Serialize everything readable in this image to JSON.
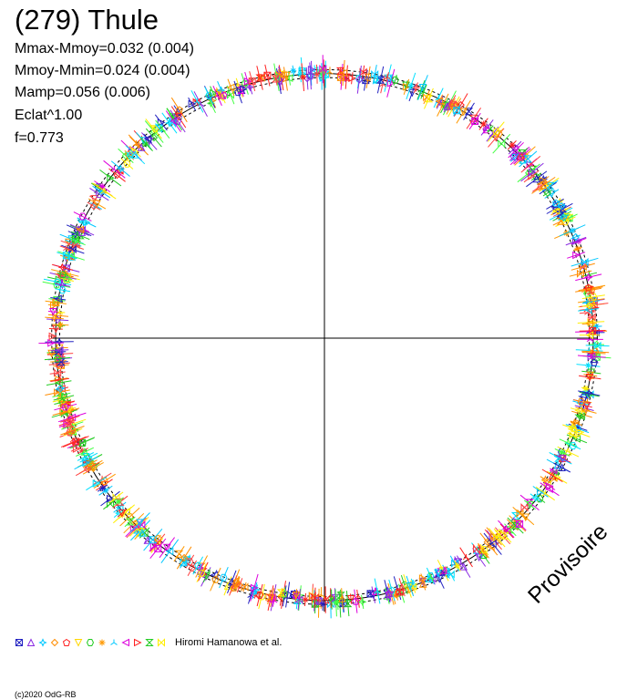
{
  "title": "(279) Thule",
  "stats": {
    "mmax_mmoy": "Mmax-Mmoy=0.032 (0.004)",
    "mmoy_mmin": "Mmoy-Mmin=0.024 (0.004)",
    "mamp": "Mamp=0.056 (0.006)",
    "eclat": "Eclat^1.00",
    "f": "f=0.773"
  },
  "credit": "Hiromi Hamanowa et al.",
  "copyright": "(c)2020 OdG-RB",
  "watermark": "Provisoire",
  "chart_data": {
    "type": "scatter",
    "subtype": "polar lightcurve",
    "title": "(279) Thule",
    "amplitude_mag": 0.056,
    "period_fraction_f": 0.773,
    "axes": "crosshair through center",
    "colors": [
      "#2020c0",
      "#8a2be2",
      "#00c8ff",
      "#ff8c00",
      "#ff2020",
      "#ffee00",
      "#22cc22",
      "#ff9900",
      "#00e0ff",
      "#dd00dd",
      "#ff4040",
      "#40ff40"
    ],
    "marker_legend": [
      "x-square",
      "triangle",
      "star",
      "diamond",
      "pentagon",
      "triangle-down",
      "hexagon",
      "flower",
      "trefoil",
      "triangle-left",
      "triangle-right",
      "hourglass",
      "bowtie"
    ],
    "legend_colors": [
      "#2020c0",
      "#8a2be2",
      "#00c8ff",
      "#ff8c00",
      "#ff2020",
      "#ffd700",
      "#22cc22",
      "#ff9900",
      "#00c8ff",
      "#dd00dd",
      "#ff2020",
      "#22cc22",
      "#ffee00"
    ]
  }
}
